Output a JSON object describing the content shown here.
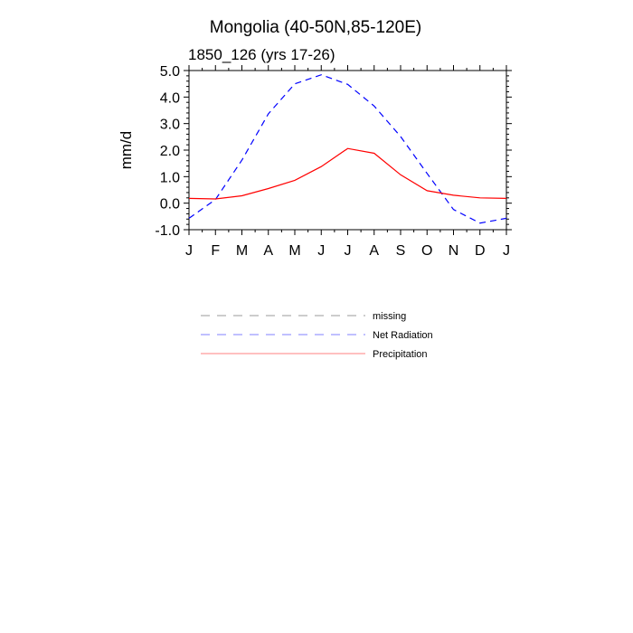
{
  "chart_data": {
    "type": "line",
    "title": "Mongolia (40-50N,85-120E)",
    "subtitle": "1850_126 (yrs 17-26)",
    "ylabel": "mm/d",
    "xlabel": "",
    "categories": [
      "J",
      "F",
      "M",
      "A",
      "M",
      "J",
      "J",
      "A",
      "S",
      "O",
      "N",
      "D",
      "J"
    ],
    "ylim": [
      -1.0,
      5.0
    ],
    "yticks": [
      "5.0",
      "4.0",
      "3.0",
      "2.0",
      "1.0",
      "0.0",
      "-1.0"
    ],
    "series": [
      {
        "name": "Net Radiation",
        "color": "#0000ff",
        "dash": "dashed",
        "values": [
          -0.57,
          0.14,
          1.62,
          3.37,
          4.5,
          4.84,
          4.48,
          3.66,
          2.51,
          1.12,
          -0.24,
          -0.75,
          -0.57
        ]
      },
      {
        "name": "Precipitation",
        "color": "#ff0000",
        "dash": "solid",
        "values": [
          0.18,
          0.16,
          0.28,
          0.55,
          0.86,
          1.38,
          2.06,
          1.88,
          1.07,
          0.47,
          0.3,
          0.2,
          0.18
        ]
      }
    ],
    "legend": [
      {
        "name": "missing",
        "color": "#999999",
        "dash": "dashed"
      },
      {
        "name": "Net Radiation",
        "color": "#0000ff",
        "dash": "dashed"
      },
      {
        "name": "Precipitation",
        "color": "#ff0000",
        "dash": "solid"
      }
    ],
    "grid": false,
    "legend_position": "below"
  }
}
